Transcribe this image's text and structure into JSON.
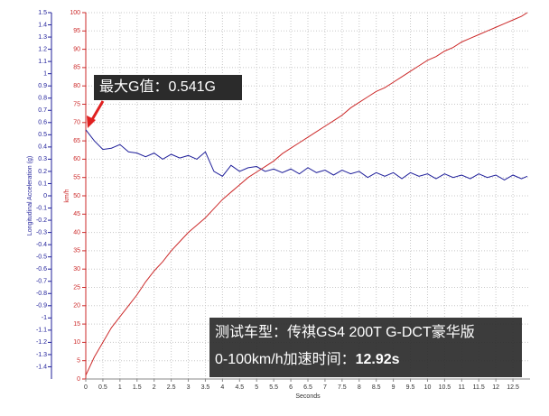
{
  "chart_data": {
    "type": "line",
    "x_label": "Seconds",
    "y_label": "Longitudinal Acceleration (g)",
    "y2_label": "km/h",
    "annotation_peak": "最大G值：0.541G",
    "annotation_model": "测试车型：传祺GS4 200T G-DCT豪华版",
    "annotation_time_label": "0-100km/h加速时间：",
    "annotation_time_value": "12.92s",
    "grid": true,
    "xlim": [
      0,
      13
    ],
    "ylim": [
      -1.5,
      1.5
    ],
    "y2lim": [
      0,
      100
    ],
    "xticks": [
      0,
      0.5,
      1,
      1.5,
      2,
      2.5,
      3,
      3.5,
      4,
      4.5,
      5,
      5.5,
      6,
      6.5,
      7,
      7.5,
      8,
      8.5,
      9,
      9.5,
      10,
      10.5,
      11,
      11.5,
      12,
      12.5
    ],
    "yticks": [
      1.5,
      1.4,
      1.3,
      1.2,
      1.1,
      1,
      0.9,
      0.8,
      0.7,
      0.6,
      0.5,
      0.4,
      0.3,
      0.2,
      0.1,
      0,
      -0.1,
      -0.2,
      -0.3,
      -0.4,
      -0.5,
      -0.6,
      -0.7,
      -0.8,
      -0.9,
      -1,
      -1.1,
      -1.2,
      -1.3,
      -1.4
    ],
    "y2ticks": [
      100,
      95,
      90,
      85,
      80,
      75,
      70,
      65,
      60,
      55,
      50,
      45,
      40,
      35,
      30,
      25,
      20,
      15,
      10,
      5,
      0
    ],
    "x": [
      0,
      0.25,
      0.5,
      0.75,
      1,
      1.25,
      1.5,
      1.75,
      2,
      2.25,
      2.5,
      2.75,
      3,
      3.25,
      3.5,
      3.75,
      4,
      4.25,
      4.5,
      4.75,
      5,
      5.25,
      5.5,
      5.75,
      6,
      6.25,
      6.5,
      6.75,
      7,
      7.25,
      7.5,
      7.75,
      8,
      8.25,
      8.5,
      8.75,
      9,
      9.25,
      9.5,
      9.75,
      10,
      10.25,
      10.5,
      10.75,
      11,
      11.25,
      11.5,
      11.75,
      12,
      12.25,
      12.5,
      12.75,
      12.92
    ],
    "series": [
      {
        "name": "Longitudinal Acceleration",
        "color": "#1f1f9a",
        "axis": "y",
        "values": [
          0.541,
          0.45,
          0.38,
          0.39,
          0.42,
          0.36,
          0.35,
          0.32,
          0.35,
          0.3,
          0.34,
          0.31,
          0.33,
          0.3,
          0.36,
          0.2,
          0.16,
          0.25,
          0.2,
          0.23,
          0.24,
          0.2,
          0.22,
          0.19,
          0.22,
          0.18,
          0.23,
          0.19,
          0.21,
          0.17,
          0.21,
          0.18,
          0.2,
          0.15,
          0.19,
          0.16,
          0.19,
          0.14,
          0.19,
          0.16,
          0.18,
          0.14,
          0.18,
          0.15,
          0.17,
          0.14,
          0.18,
          0.15,
          0.17,
          0.13,
          0.17,
          0.14,
          0.16
        ]
      },
      {
        "name": "Speed",
        "color": "#cc2a2a",
        "axis": "y2",
        "values": [
          1,
          6,
          10,
          14,
          17,
          20,
          23,
          26.5,
          29.5,
          32,
          35,
          37.5,
          40,
          42,
          44,
          46.5,
          49,
          51,
          53,
          55,
          56.5,
          58,
          59.5,
          61.5,
          63,
          64.5,
          66,
          67.5,
          69,
          70.5,
          72,
          74,
          75.5,
          77,
          78.5,
          79.5,
          81,
          82.5,
          84,
          85.5,
          87,
          88,
          89.5,
          90.5,
          92,
          93,
          94,
          95,
          96,
          97,
          98,
          99,
          100
        ]
      }
    ]
  }
}
